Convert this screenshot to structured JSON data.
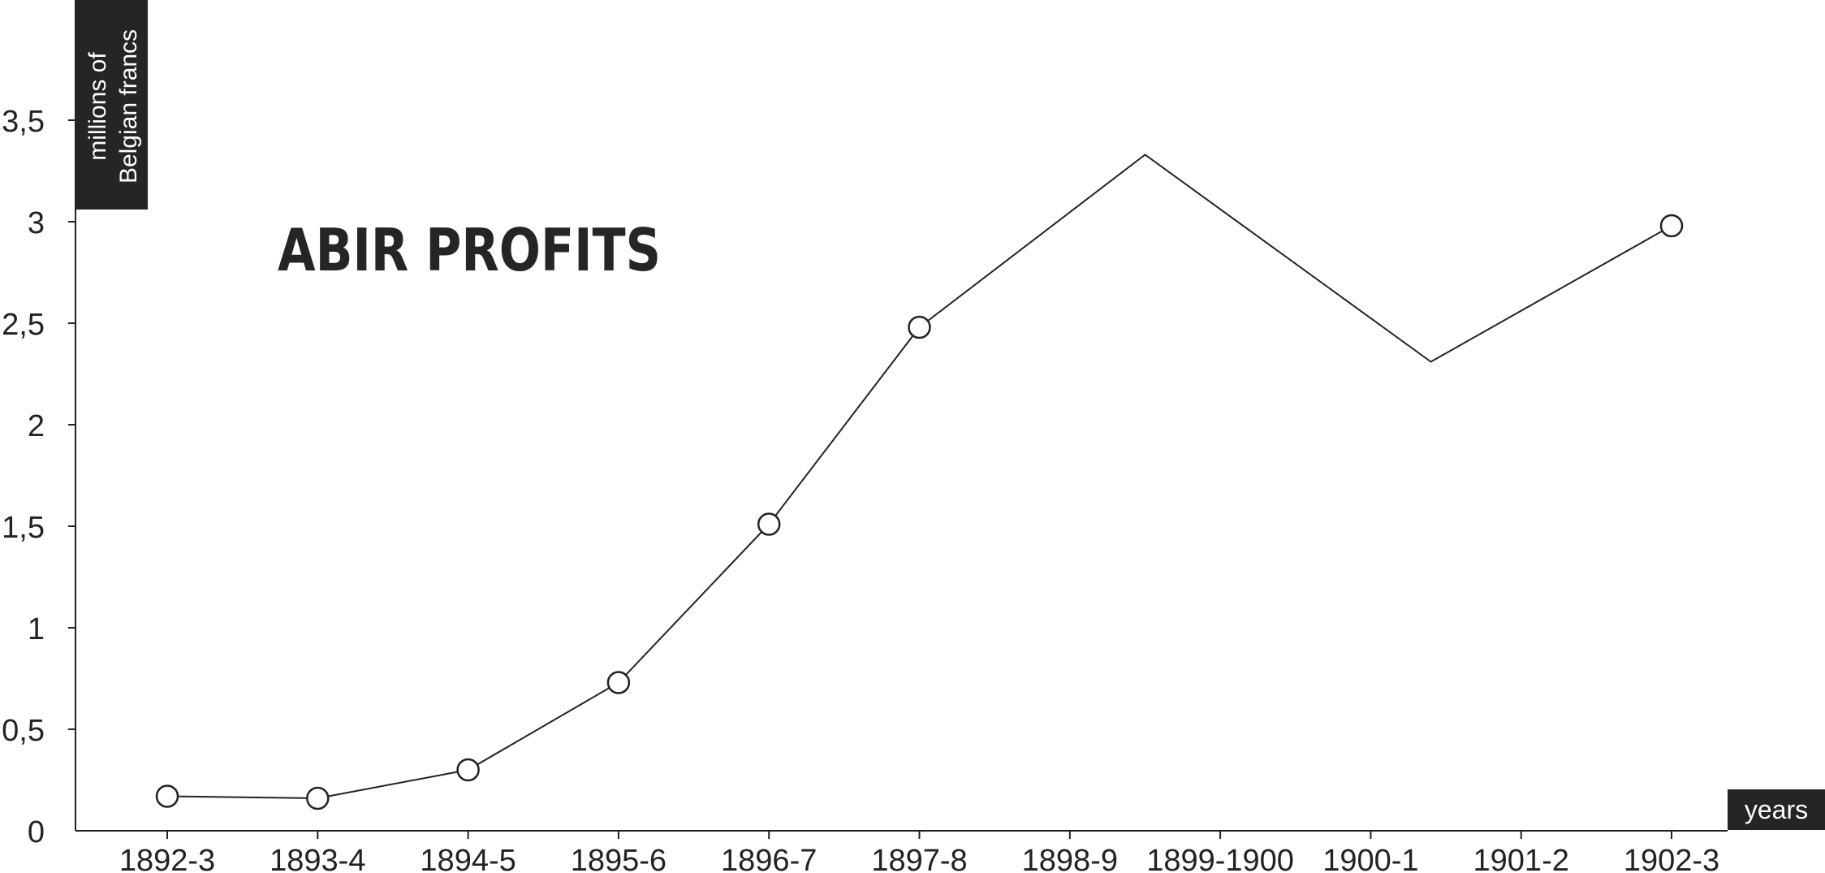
{
  "chart_data": {
    "type": "line",
    "title": "ABIR PROFITS",
    "xlabel": "years",
    "ylabel_line1": "millions of",
    "ylabel_line2": "Belgian francs",
    "ylim": [
      0,
      3.5
    ],
    "yticks": [
      "0",
      "0,5",
      "1",
      "1,5",
      "2",
      "2,5",
      "3",
      "3,5"
    ],
    "ytick_values": [
      0,
      0.5,
      1,
      1.5,
      2,
      2.5,
      3,
      3.5
    ],
    "categories": [
      "1892-3",
      "1893-4",
      "1894-5",
      "1895-6",
      "1896-7",
      "1897-8",
      "1898-9",
      "1899-1900",
      "1900-1",
      "1901-2",
      "1902-3"
    ],
    "series": [
      {
        "points": [
          {
            "x": 0,
            "y": 0.17,
            "marker": true
          },
          {
            "x": 1,
            "y": 0.16,
            "marker": true
          },
          {
            "x": 2,
            "y": 0.3,
            "marker": true
          },
          {
            "x": 3,
            "y": 0.73,
            "marker": true
          },
          {
            "x": 4,
            "y": 1.51,
            "marker": true
          },
          {
            "x": 5,
            "y": 2.48,
            "marker": true
          },
          {
            "x": 6.5,
            "y": 3.33,
            "marker": false
          },
          {
            "x": 8.4,
            "y": 2.31,
            "marker": false
          },
          {
            "x": 10,
            "y": 2.98,
            "marker": true
          }
        ]
      }
    ],
    "grid": false,
    "colors": {
      "line": "#222222",
      "label_box": "#252525",
      "background": "#ffffff"
    }
  }
}
